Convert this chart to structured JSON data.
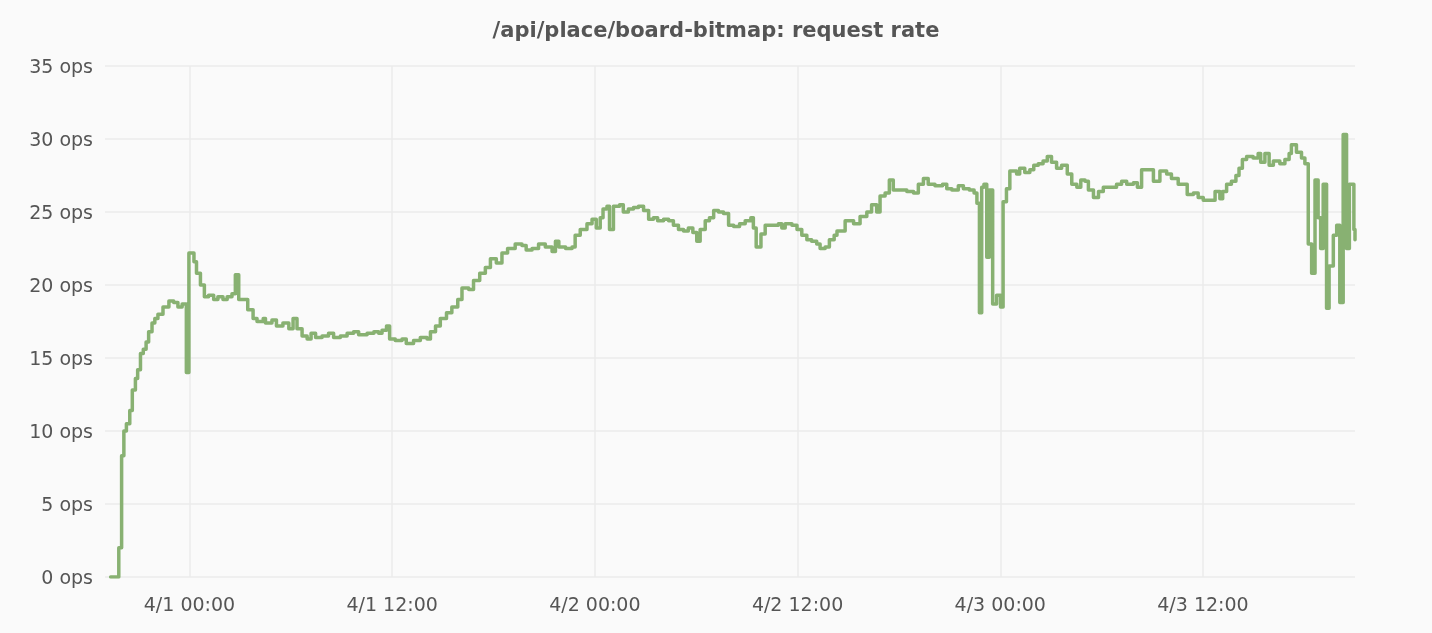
{
  "chart_data": {
    "type": "step",
    "title": "/api/place/board-bitmap: request rate",
    "color": "#88b172",
    "x": [
      "--03-31T19:20",
      "--03-31T19:49",
      "--03-31T19:59",
      "--03-31T20:07",
      "--03-31T20:16",
      "--03-31T20:28",
      "--03-31T20:37",
      "--03-31T20:48",
      "--03-31T20:56",
      "--03-31T21:06",
      "--03-31T21:16",
      "--03-31T21:26",
      "--03-31T21:35",
      "--03-31T21:47",
      "--03-31T21:57",
      "--03-31T22:08",
      "--03-31T22:26",
      "--03-31T22:47",
      "--03-31T23:04",
      "--03-31T23:19",
      "--03-31T23:34",
      "--03-31T23:49",
      "--03-31T23:58",
      "--04-01T00:16",
      "--04-01T00:25",
      "--04-01T00:39",
      "--04-01T00:53",
      "--04-01T01:08",
      "--04-01T01:26",
      "--04-01T01:41",
      "--04-01T01:59",
      "--04-01T02:14",
      "--04-01T02:31",
      "--04-01T02:43",
      "--04-01T02:55",
      "--04-01T03:27",
      "--04-01T03:46",
      "--04-01T04:00",
      "--04-01T04:22",
      "--04-01T04:30",
      "--04-01T04:53",
      "--04-01T05:09",
      "--04-01T05:32",
      "--04-01T05:53",
      "--04-01T06:08",
      "--04-01T06:22",
      "--04-01T06:40",
      "--04-01T06:58",
      "--04-01T07:12",
      "--04-01T07:28",
      "--04-01T07:51",
      "--04-01T08:14",
      "--04-01T08:32",
      "--04-01T08:56",
      "--04-01T09:20",
      "--04-01T09:43",
      "--04-01T10:01",
      "--04-01T10:31",
      "--04-01T10:55",
      "--04-01T11:12",
      "--04-01T11:24",
      "--04-01T11:40",
      "--04-01T11:51",
      "--04-01T12:11",
      "--04-01T12:35",
      "--04-01T12:50",
      "--04-01T13:16",
      "--04-01T13:40",
      "--04-01T14:04",
      "--04-01T14:16",
      "--04-01T14:34",
      "--04-01T14:51",
      "--04-01T15:13",
      "--04-01T15:32",
      "--04-01T15:53",
      "--04-01T16:08",
      "--04-01T16:32",
      "--04-01T16:49",
      "--04-01T17:11",
      "--04-01T17:31",
      "--04-01T17:49",
      "--04-01T18:10",
      "--04-01T18:30",
      "--04-01T18:50",
      "--04-01T19:17",
      "--04-01T19:41",
      "--04-01T19:56",
      "--04-01T20:17",
      "--04-01T20:40",
      "--04-01T21:04",
      "--04-01T21:28",
      "--04-01T21:40",
      "--04-01T21:52",
      "--04-01T22:16",
      "--04-01T22:39",
      "--04-01T22:50",
      "--04-01T23:08",
      "--04-01T23:32",
      "--04-01T23:50",
      "--04-02T00:05",
      "--04-02T00:19",
      "--04-02T00:29",
      "--04-02T00:43",
      "--04-02T00:52",
      "--04-02T01:06",
      "--04-02T01:28",
      "--04-02T01:41",
      "--04-02T01:59",
      "--04-02T02:17",
      "--04-02T02:35",
      "--04-02T02:53",
      "--04-02T03:11",
      "--04-02T03:28",
      "--04-02T03:43",
      "--04-02T04:04",
      "--04-02T04:22",
      "--04-02T04:39",
      "--04-02T04:57",
      "--04-02T05:15",
      "--04-02T05:32",
      "--04-02T05:48",
      "--04-02T06:02",
      "--04-02T06:14",
      "--04-02T06:32",
      "--04-02T06:47",
      "--04-02T07:02",
      "--04-02T07:19",
      "--04-02T07:37",
      "--04-02T07:55",
      "--04-02T08:13",
      "--04-02T08:34",
      "--04-02T08:54",
      "--04-02T09:14",
      "--04-02T09:23",
      "--04-02T09:33",
      "--04-02T09:50",
      "--04-02T10:05",
      "--04-02T10:52",
      "--04-02T11:04",
      "--04-02T11:16",
      "--04-02T11:40",
      "--04-02T11:58",
      "--04-02T12:15",
      "--04-02T12:33",
      "--04-02T12:50",
      "--04-02T13:08",
      "--04-02T13:20",
      "--04-02T13:38",
      "--04-02T13:53",
      "--04-02T14:10",
      "--04-02T14:20",
      "--04-02T14:49",
      "--04-02T15:19",
      "--04-02T15:42",
      "--04-02T16:06",
      "--04-02T16:23",
      "--04-02T16:41",
      "--04-02T16:53",
      "--04-02T17:11",
      "--04-02T17:26",
      "--04-02T17:40",
      "--04-02T18:28",
      "--04-02T18:52",
      "--04-02T19:09",
      "--04-02T19:27",
      "--04-02T19:44",
      "--04-02T20:08",
      "--04-02T20:35",
      "--04-02T20:50",
      "--04-02T21:08",
      "--04-02T21:31",
      "--04-02T21:49",
      "--04-02T22:10",
      "--04-02T22:27",
      "--04-02T22:37",
      "--04-02T22:46",
      "--04-02T22:54",
      "--04-02T23:02",
      "--04-02T23:12",
      "--04-02T23:21",
      "--04-02T23:33",
      "--04-02T23:47",
      "--04-03T00:01",
      "--04-03T00:10",
      "--04-03T00:22",
      "--04-03T00:34",
      "--04-03T00:58",
      "--04-03T01:09",
      "--04-03T01:27",
      "--04-03T01:45",
      "--04-03T01:59",
      "--04-03T02:15",
      "--04-03T02:32",
      "--04-03T02:47",
      "--04-03T03:02",
      "--04-03T03:20",
      "--04-03T03:38",
      "--04-03T03:58",
      "--04-03T04:14",
      "--04-03T04:32",
      "--04-03T04:46",
      "--04-03T05:01",
      "--04-03T05:13",
      "--04-03T05:31",
      "--04-03T05:49",
      "--04-03T06:06",
      "--04-03T06:53",
      "--04-03T07:11",
      "--04-03T07:29",
      "--04-03T07:53",
      "--04-03T08:07",
      "--04-03T08:22",
      "--04-03T09:04",
      "--04-03T09:27",
      "--04-03T09:51",
      "--04-03T10:08",
      "--04-03T10:32",
      "--04-03T11:04",
      "--04-03T11:26",
      "--04-03T11:43",
      "--04-03T12:01",
      "--04-03T12:43",
      "--04-03T13:00",
      "--04-03T13:10",
      "--04-03T13:24",
      "--04-03T13:41",
      "--04-03T13:57",
      "--04-03T14:08",
      "--04-03T14:20",
      "--04-03T14:35",
      "--04-03T14:58",
      "--04-03T15:16",
      "--04-03T15:25",
      "--04-03T15:40",
      "--04-03T15:55",
      "--04-03T16:10",
      "--04-03T16:33",
      "--04-03T16:51",
      "--04-03T17:06",
      "--04-03T17:14",
      "--04-03T17:32",
      "--04-03T17:50",
      "--04-03T18:02",
      "--04-03T18:14",
      "--04-03T18:26",
      "--04-03T18:38",
      "--04-03T18:49",
      "--04-03T18:58",
      "--04-03T19:07",
      "--04-03T19:19",
      "--04-03T19:28",
      "--04-03T19:43",
      "--04-03T19:55",
      "--04-03T20:06",
      "--04-03T20:18",
      "--04-03T20:30",
      "--04-03T20:40",
      "--04-03T20:56",
      "--04-03T21:00"
    ],
    "values": [
      0,
      2,
      8.3,
      10,
      10.5,
      11.4,
      12.8,
      13.6,
      14.2,
      15.3,
      15.6,
      16.1,
      16.8,
      17.4,
      17.7,
      18,
      18.5,
      18.9,
      18.8,
      18.5,
      18.7,
      14,
      22.2,
      21.6,
      20.8,
      20,
      19.2,
      19.3,
      19,
      19.2,
      19,
      19.2,
      19.4,
      20.7,
      19,
      18.3,
      17.7,
      17.5,
      17.7,
      17.4,
      17.6,
      17.2,
      17.4,
      17,
      17.7,
      17,
      16.5,
      16.3,
      16.7,
      16.4,
      16.5,
      16.7,
      16.4,
      16.5,
      16.7,
      16.8,
      16.6,
      16.7,
      16.8,
      16.7,
      16.9,
      17.2,
      16.3,
      16.2,
      16.3,
      16,
      16.2,
      16.4,
      16.3,
      16.8,
      17.2,
      17.7,
      18.1,
      18.5,
      19,
      19.8,
      19.7,
      20.3,
      20.8,
      21.2,
      21.8,
      21.5,
      22.2,
      22.5,
      22.8,
      22.7,
      22.4,
      22.5,
      22.8,
      22.6,
      22.3,
      23,
      22.6,
      22.5,
      22.6,
      23.4,
      23.8,
      24.2,
      24.5,
      23.9,
      24.6,
      25.2,
      25.4,
      23.8,
      25.4,
      25.5,
      25,
      25.2,
      25.3,
      25.4,
      25.1,
      24.5,
      24.6,
      24.4,
      24.5,
      24.4,
      24.1,
      23.8,
      23.7,
      23.9,
      23.6,
      23,
      23.8,
      24.4,
      24.6,
      25.1,
      25,
      24.9,
      24.1,
      24,
      24.2,
      24.4,
      24.6,
      23.9,
      22.6,
      23.5,
      24.1,
      24.2,
      23.9,
      24.2,
      24.1,
      23.8,
      23.4,
      23.1,
      23,
      22.8,
      22.5,
      22.6,
      23.1,
      23.4,
      23.7,
      24.4,
      24.2,
      24.7,
      25,
      25.5,
      25,
      26.1,
      26.3,
      27.2,
      26.5,
      26.4,
      26.3,
      26.9,
      27.3,
      26.9,
      26.8,
      26.9,
      26.6,
      26.5,
      26.8,
      26.6,
      26.5,
      26.3,
      25.6,
      18.1,
      26.7,
      26.9,
      21.9,
      26.5,
      18.7,
      19.3,
      18.5,
      25.7,
      26.6,
      27.8,
      27.6,
      28,
      27.7,
      27.9,
      28.2,
      28.3,
      28.5,
      28.8,
      28.4,
      28,
      28.2,
      27.6,
      26.9,
      26.7,
      27.2,
      27.1,
      26.5,
      26,
      26.4,
      26.7,
      26.9,
      27.1,
      26.9,
      27,
      26.7,
      27.9,
      27.1,
      27.8,
      27.6,
      27.3,
      26.9,
      26.2,
      26.3,
      26,
      25.8,
      26.4,
      25.9,
      26.4,
      26.9,
      27.1,
      27.5,
      28,
      28.6,
      28.8,
      28.7,
      29,
      28.4,
      29,
      28.2,
      28.5,
      28.3,
      28.6,
      29,
      29.6,
      29.1,
      28.7,
      28.3,
      22.8,
      20.8,
      27.2,
      24.6,
      22.5,
      26.9,
      18.4,
      21.3,
      23.4,
      24.1,
      18.8,
      30.3,
      22.5,
      26.9,
      23.8,
      23.1
    ],
    "xlim": [
      "--03-31T19:00",
      "--04-03T21:00"
    ],
    "xticks": [
      {
        "value": "--04-01T00:00",
        "label": "4/1 00:00"
      },
      {
        "value": "--04-01T12:00",
        "label": "4/1 12:00"
      },
      {
        "value": "--04-02T00:00",
        "label": "4/2 00:00"
      },
      {
        "value": "--04-02T12:00",
        "label": "4/2 12:00"
      },
      {
        "value": "--04-03T00:00",
        "label": "4/3 00:00"
      },
      {
        "value": "--04-03T12:00",
        "label": "4/3 12:00"
      }
    ],
    "ylim": [
      0,
      35
    ],
    "yticks": [
      {
        "value": 0,
        "label": "0 ops"
      },
      {
        "value": 5,
        "label": "5 ops"
      },
      {
        "value": 10,
        "label": "10 ops"
      },
      {
        "value": 15,
        "label": "15 ops"
      },
      {
        "value": 20,
        "label": "20 ops"
      },
      {
        "value": 25,
        "label": "25 ops"
      },
      {
        "value": 30,
        "label": "30 ops"
      },
      {
        "value": 35,
        "label": "35 ops"
      }
    ],
    "grid": true
  }
}
